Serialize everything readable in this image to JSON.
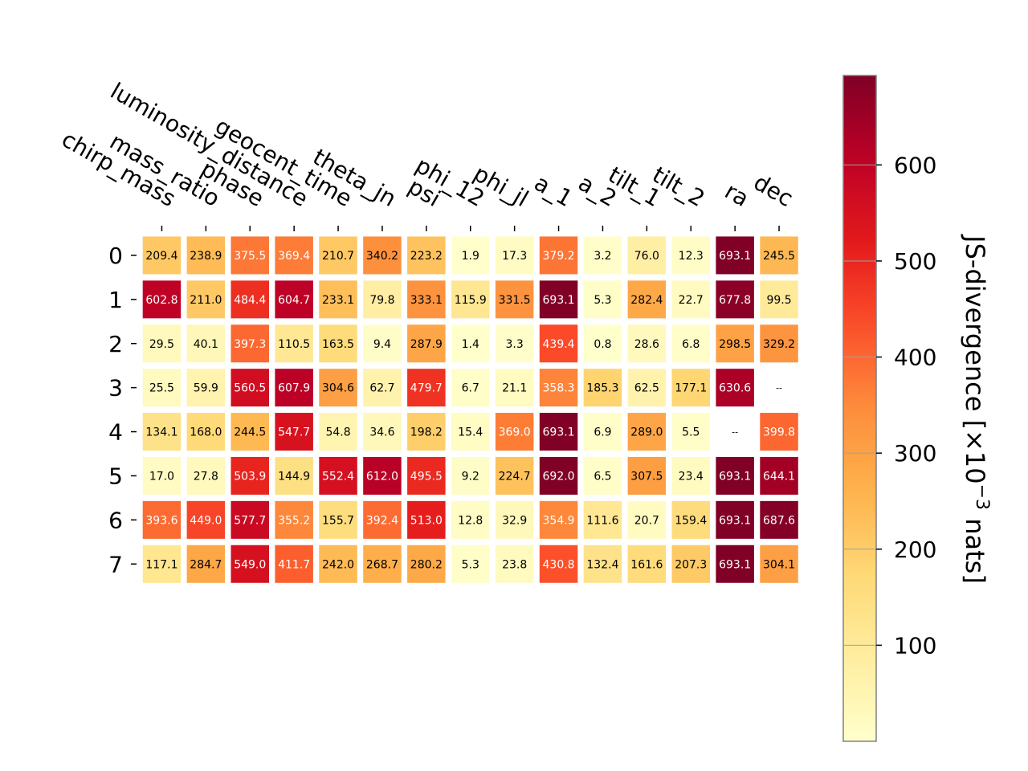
{
  "chart_data": {
    "type": "heatmap",
    "title": "",
    "x_labels": [
      "chirp_mass",
      "mass_ratio",
      "phase",
      "luminosity_distance",
      "geocent_time",
      "theta_jn",
      "psi",
      "phi_12",
      "phi_jl",
      "a_1",
      "a_2",
      "tilt_1",
      "tilt_2",
      "ra",
      "dec"
    ],
    "y_labels": [
      "0",
      "1",
      "2",
      "3",
      "4",
      "5",
      "6",
      "7"
    ],
    "values": [
      [
        209.4,
        238.9,
        375.5,
        369.4,
        210.7,
        340.2,
        223.2,
        1.9,
        17.3,
        379.2,
        3.2,
        76.0,
        12.3,
        693.1,
        245.5
      ],
      [
        602.8,
        211.0,
        484.4,
        604.7,
        233.1,
        79.8,
        333.1,
        115.9,
        331.5,
        693.1,
        5.3,
        282.4,
        22.7,
        677.8,
        99.5
      ],
      [
        29.5,
        40.1,
        397.3,
        110.5,
        163.5,
        9.4,
        287.9,
        1.4,
        3.3,
        439.4,
        0.8,
        28.6,
        6.8,
        298.5,
        329.2
      ],
      [
        25.5,
        59.9,
        560.5,
        607.9,
        304.6,
        62.7,
        479.7,
        6.7,
        21.1,
        358.3,
        185.3,
        62.5,
        177.1,
        630.6,
        null
      ],
      [
        134.1,
        168.0,
        244.5,
        547.7,
        54.8,
        34.6,
        198.2,
        15.4,
        369.0,
        693.1,
        6.9,
        289.0,
        5.5,
        null,
        399.8
      ],
      [
        17.0,
        27.8,
        503.9,
        144.9,
        552.4,
        612.0,
        495.5,
        9.2,
        224.7,
        692.0,
        6.5,
        307.5,
        23.4,
        693.1,
        644.1
      ],
      [
        393.6,
        449.0,
        577.7,
        355.2,
        155.7,
        392.4,
        513.0,
        12.8,
        32.9,
        354.9,
        111.6,
        20.7,
        159.4,
        693.1,
        687.6
      ],
      [
        117.1,
        284.7,
        549.0,
        411.7,
        242.0,
        268.7,
        280.2,
        5.3,
        23.8,
        430.8,
        132.4,
        161.6,
        207.3,
        693.1,
        304.1
      ]
    ],
    "missing_label": "--",
    "colormap": "YlOrRd",
    "vmin": 0,
    "vmax": 693.1,
    "colorbar": {
      "label_prefix": "JS-divergence [×10",
      "label_exponent": "−3",
      "label_suffix": " nats]",
      "ticks": [
        100,
        200,
        300,
        400,
        500,
        600
      ]
    },
    "colors": {
      "dark_text": "#000000",
      "light_text": "#ffffff",
      "colorbar_border": "#808080",
      "colorbar_tick_line": "#a0a0a0"
    }
  }
}
